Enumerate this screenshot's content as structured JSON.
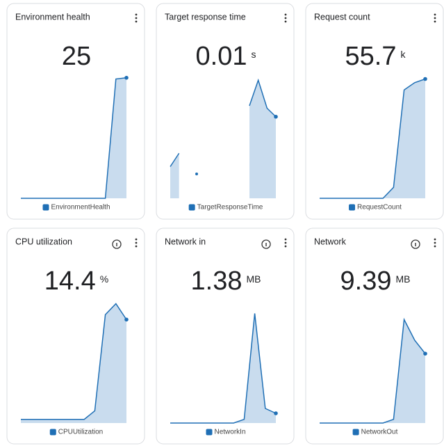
{
  "chart_data": [
    {
      "type": "area",
      "title": "Environment health",
      "value": "25",
      "ylim": [
        0,
        100
      ],
      "info_icon": false,
      "series": [
        {
          "name": "EnvironmentHealth",
          "color": "#1f6fb5",
          "values": [
            0,
            0,
            0,
            0,
            0,
            0,
            0,
            0,
            0,
            98,
            99
          ]
        }
      ]
    },
    {
      "type": "area",
      "title": "Target response time",
      "value": "0.01",
      "unit": "s",
      "ylim": [
        0,
        100
      ],
      "info_icon": false,
      "series": [
        {
          "name": "TargetResponseTime",
          "color": "#1f6fb5",
          "values": [
            26,
            37,
            null,
            20,
            null,
            null,
            null,
            null,
            null,
            76,
            97,
            74,
            67
          ]
        }
      ]
    },
    {
      "type": "area",
      "title": "Request count",
      "value": "55.7",
      "unit": "k",
      "ylim": [
        0,
        100
      ],
      "info_icon": false,
      "series": [
        {
          "name": "RequestCount",
          "color": "#1f6fb5",
          "values": [
            0,
            0,
            0,
            0,
            0,
            0,
            0,
            9,
            89,
            95,
            98
          ]
        }
      ]
    },
    {
      "type": "area",
      "title": "CPU utilization",
      "value": "14.4",
      "unit": "%",
      "ylim": [
        0,
        100
      ],
      "info_icon": true,
      "series": [
        {
          "name": "CPUUtilization",
          "color": "#1f6fb5",
          "values": [
            3,
            3,
            3,
            3,
            3,
            3,
            3,
            10,
            89,
            98,
            85
          ]
        }
      ]
    },
    {
      "type": "area",
      "title": "Network in",
      "value": "1.38",
      "unit": "MB",
      "ylim": [
        0,
        100
      ],
      "info_icon": true,
      "series": [
        {
          "name": "NetworkIn",
          "color": "#1f6fb5",
          "values": [
            0,
            0,
            0,
            0,
            0,
            0,
            0,
            3,
            90,
            12,
            8
          ]
        }
      ]
    },
    {
      "type": "area",
      "title": "Network",
      "value": "9.39",
      "unit": "MB",
      "ylim": [
        0,
        100
      ],
      "info_icon": true,
      "series": [
        {
          "name": "NetworkOut",
          "color": "#1f6fb5",
          "values": [
            0,
            0,
            0,
            0,
            0,
            0,
            0,
            3,
            85,
            68,
            57
          ]
        }
      ]
    }
  ]
}
